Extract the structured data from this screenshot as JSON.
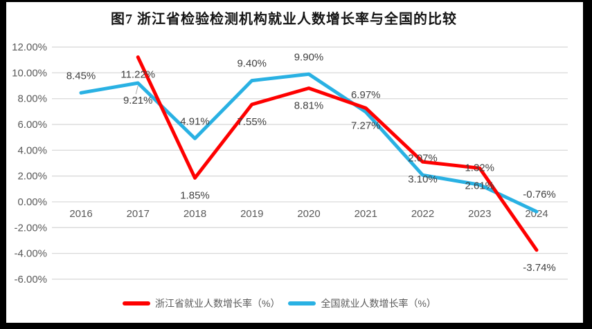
{
  "title": "图7  浙江省检验检测机构就业人数增长率与全国的比较",
  "colors": {
    "zhejiang_line": "#FE0000",
    "national_line": "#29B1E3",
    "gridline": "#D9D9D9",
    "axis_text": "#595959",
    "data_label_text": "#404040",
    "frame": "#000000",
    "background": "#FFFFFF"
  },
  "y_axis": {
    "tick_labels": [
      "12.00%",
      "10.00%",
      "8.00%",
      "6.00%",
      "4.00%",
      "2.00%",
      "0.00%",
      "-2.00%",
      "-4.00%",
      "-6.00%"
    ]
  },
  "x_axis": {
    "tick_labels": [
      "2016",
      "2017",
      "2018",
      "2019",
      "2020",
      "2021",
      "2022",
      "2023",
      "2024"
    ]
  },
  "chart_data": {
    "type": "line",
    "title": "图7  浙江省检验检测机构就业人数增长率与全国的比较",
    "categories": [
      "2016",
      "2017",
      "2018",
      "2019",
      "2020",
      "2021",
      "2022",
      "2023",
      "2024"
    ],
    "series": [
      {
        "name": "浙江省就业人数增长率（%）",
        "color": "#FE0000",
        "values": [
          null,
          11.22,
          1.85,
          7.55,
          8.81,
          7.27,
          3.1,
          2.61,
          -3.74
        ],
        "labels": [
          "",
          "11.22%",
          "1.85%",
          "7.55%",
          "8.81%",
          "7.27%",
          "3.10%",
          "2.61%",
          "-3.74%"
        ],
        "label_side": "below"
      },
      {
        "name": "全国就业人数增长率（%）",
        "color": "#29B1E3",
        "values": [
          8.45,
          9.21,
          4.91,
          9.4,
          9.9,
          6.97,
          2.07,
          1.32,
          -0.76
        ],
        "labels": [
          "8.45%",
          "9.21%",
          "4.91%",
          "9.40%",
          "9.90%",
          "6.97%",
          "2.07%",
          "1.32%",
          "-0.76%"
        ],
        "label_side": "above",
        "label_side_overrides": {
          "1": "below"
        }
      }
    ],
    "ylim": [
      -6,
      12
    ],
    "ytick_step": 2,
    "grid": true,
    "legend_position": "bottom",
    "value_format": "0.00%"
  }
}
